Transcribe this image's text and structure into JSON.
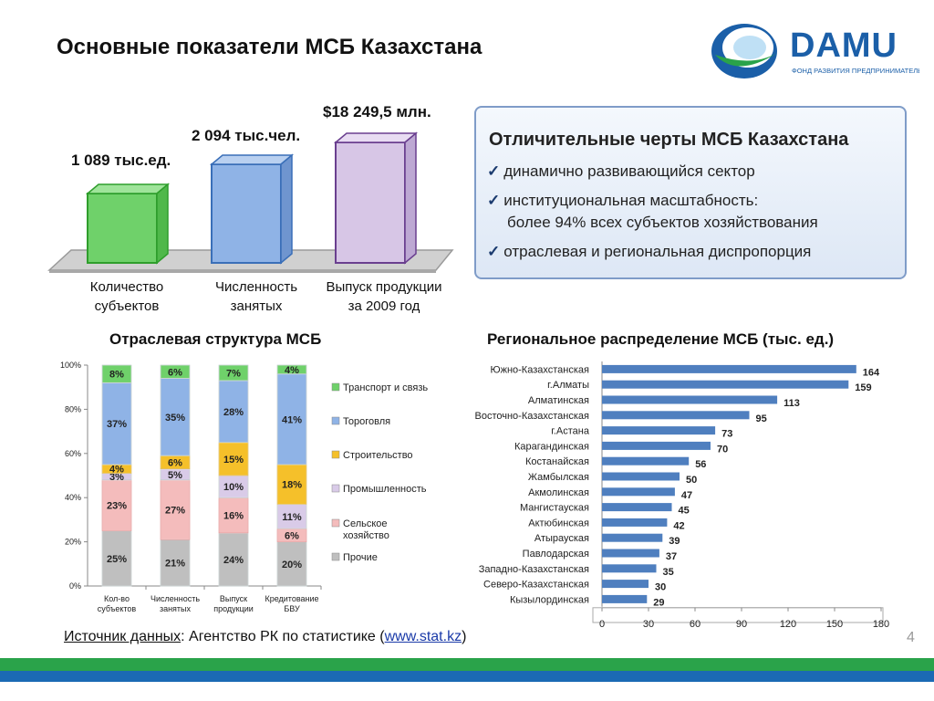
{
  "title": "Основные показатели МСБ Казахстана",
  "logo": {
    "brand": "DAMU",
    "tagline": "ФОНД РАЗВИТИЯ ПРЕДПРИНИМАТЕЛЬСТВА"
  },
  "top_indicators": [
    {
      "value_label": "1 089 тыс.ед.",
      "category": [
        "Количество",
        "субъектов"
      ],
      "color": "#6fd16a"
    },
    {
      "value_label": "2 094 тыс.чел.",
      "category": [
        "Численность",
        "занятых"
      ],
      "color": "#8fb3e6"
    },
    {
      "value_label": "$18 249,5 млн.",
      "category": [
        "Выпуск продукции",
        "за 2009 год"
      ],
      "color": "#d7c6e6"
    }
  ],
  "features": {
    "title": "Отличительные черты МСБ Казахстана",
    "items": [
      "динамично развивающийся сектор",
      "институциональная масштабность:",
      "более 94% всех субъектов хозяйствования",
      "отраслевая и региональная диспропорция"
    ]
  },
  "sectoral_title": "Отраслевая структура МСБ",
  "regional_title": "Региональное распределение МСБ (тыс. ед.)",
  "source": {
    "label": "Источник данных",
    "text": ": Агентство РК по статистике (",
    "url": "www.stat.kz",
    "close": ")"
  },
  "page_number": "4",
  "chart_data": [
    {
      "type": "bar",
      "stacked": true,
      "categories": [
        "Кол-во субъектов",
        "Численность занятых",
        "Выпуск продукции",
        "Кредитование БВУ"
      ],
      "y_ticks": [
        "0%",
        "20%",
        "40%",
        "60%",
        "80%",
        "100%"
      ],
      "ylim": [
        0,
        100
      ],
      "series": [
        {
          "name": "Прочие",
          "values": [
            25,
            21,
            24,
            20
          ],
          "labels": [
            "25%",
            "21%",
            "24%",
            "20%"
          ],
          "color": "#bfbfbf"
        },
        {
          "name": "Сельское хозяйство",
          "values": [
            23,
            27,
            16,
            6
          ],
          "labels": [
            "23%",
            "27%",
            "16%",
            "6%"
          ],
          "color": "#f4bcbc"
        },
        {
          "name": "Промышленность",
          "values": [
            3,
            5,
            10,
            11
          ],
          "labels": [
            "3%",
            "5%",
            "10%",
            "11%"
          ],
          "color": "#d9cbe8"
        },
        {
          "name": "Строительство",
          "values": [
            4,
            6,
            15,
            18
          ],
          "labels": [
            "4%",
            "6%",
            "15%",
            "18%"
          ],
          "color": "#f5c02a"
        },
        {
          "name": "Тороговля",
          "values": [
            37,
            35,
            28,
            41
          ],
          "labels": [
            "37%",
            "35%",
            "28%",
            "41%"
          ],
          "color": "#8fb3e6"
        },
        {
          "name": "Транспорт и связь",
          "values": [
            8,
            6,
            7,
            4
          ],
          "labels": [
            "8%",
            "6%",
            "7%",
            "4%"
          ],
          "color": "#6fd16a"
        }
      ],
      "legend_labels": [
        "Транспорт и связь",
        "Тороговля",
        "Строительство",
        "Промышленность",
        "Сельское хозяйство",
        "Прочие"
      ],
      "legend_placement": "right"
    },
    {
      "type": "bar",
      "orientation": "horizontal",
      "categories": [
        "Южно-Казахстанская",
        "г.Алматы",
        "Алматинская",
        "Восточно-Казахстанская",
        "г.Астана",
        "Карагандинская",
        "Костанайская",
        "Жамбылская",
        "Акмолинская",
        "Мангистауская",
        "Актюбинская",
        "Атырауская",
        "Павлодарская",
        "Западно-Казахстанская",
        "Северо-Казахстанская",
        "Кызылординская"
      ],
      "values": [
        164,
        159,
        113,
        95,
        73,
        70,
        56,
        50,
        47,
        45,
        42,
        39,
        37,
        35,
        30,
        29
      ],
      "xlim": [
        0,
        180
      ],
      "x_ticks": [
        0,
        30,
        60,
        90,
        120,
        150,
        180
      ],
      "color": "#4f7fbf",
      "grid": false
    }
  ]
}
